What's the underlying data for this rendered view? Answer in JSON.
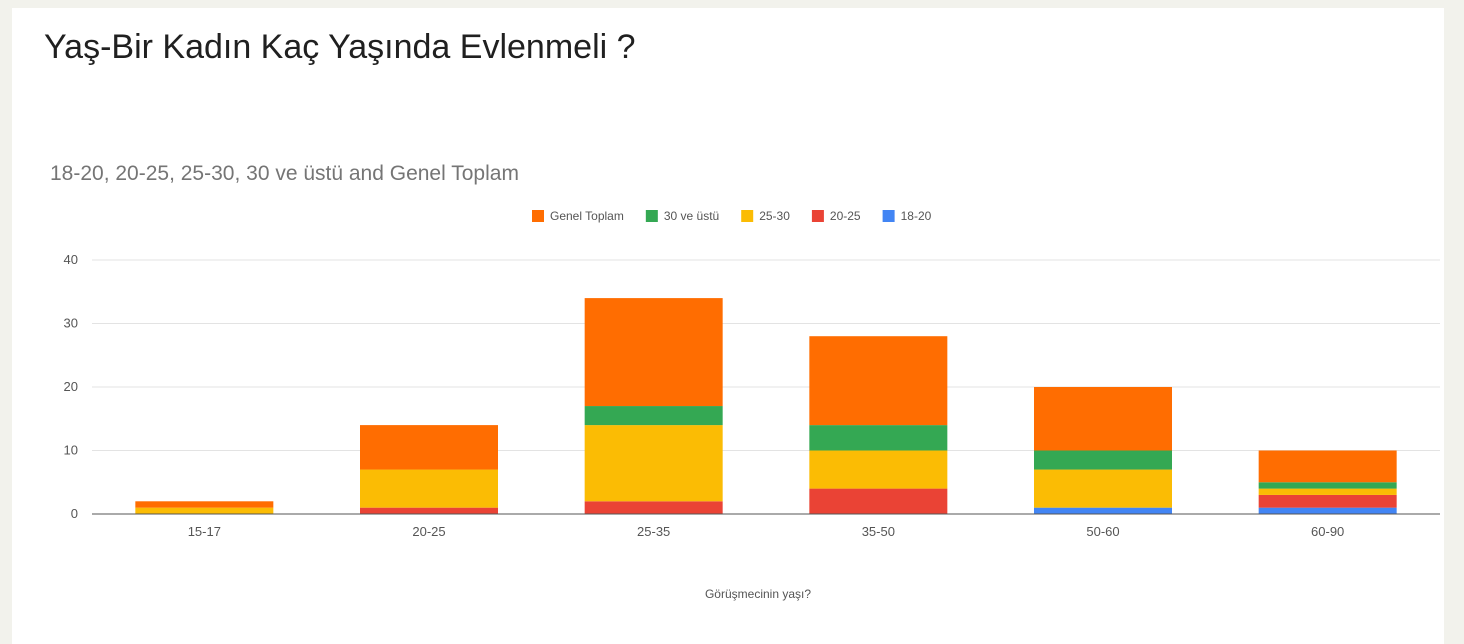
{
  "page": {
    "title": "Yaş-Bir Kadın Kaç Yaşında Evlenmeli ?"
  },
  "colors": {
    "background": "#f2f2ec",
    "card": "#ffffff",
    "gridline": "#e3e3e3",
    "baseline": "#555555"
  },
  "chart_data": {
    "type": "bar",
    "stacked": true,
    "title": "18-20, 20-25, 25-30, 30 ve üstü and Genel Toplam",
    "xlabel": "Görüşmecinin yaşı?",
    "ylabel": "",
    "ylim": [
      0,
      40
    ],
    "yticks": [
      0,
      10,
      20,
      30,
      40
    ],
    "grid": true,
    "legend_position": "top",
    "categories": [
      "15-17",
      "20-25",
      "25-35",
      "35-50",
      "50-60",
      "60-90"
    ],
    "series": [
      {
        "name": "18-20",
        "color": "#4285f4",
        "values": [
          0,
          0,
          0,
          0,
          1,
          1
        ]
      },
      {
        "name": "20-25",
        "color": "#ea4335",
        "values": [
          0,
          1,
          2,
          4,
          0,
          2
        ]
      },
      {
        "name": "25-30",
        "color": "#fbbc04",
        "values": [
          1,
          6,
          12,
          6,
          6,
          1
        ]
      },
      {
        "name": "30 ve üstü",
        "color": "#34a853",
        "values": [
          0,
          0,
          3,
          4,
          3,
          1
        ]
      },
      {
        "name": "Genel Toplam",
        "color": "#ff6d01",
        "values": [
          1,
          7,
          17,
          14,
          10,
          5
        ]
      }
    ],
    "legend_order": [
      "Genel Toplam",
      "30 ve üstü",
      "25-30",
      "20-25",
      "18-20"
    ]
  }
}
